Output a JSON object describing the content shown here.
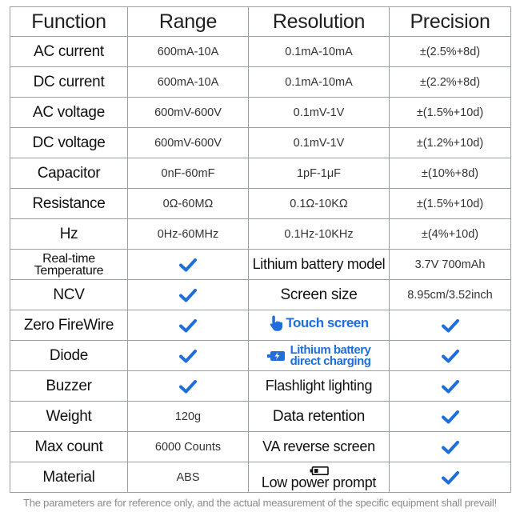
{
  "table": {
    "headers": [
      "Function",
      "Range",
      "Resolution",
      "Precision"
    ],
    "rows": [
      {
        "function": "AC current",
        "range": "600mA-10A",
        "resolution": "0.1mA-10mA",
        "precision": "±(2.5%+8d)"
      },
      {
        "function": "DC current",
        "range": "600mA-10A",
        "resolution": "0.1mA-10mA",
        "precision": "±(2.2%+8d)"
      },
      {
        "function": "AC voltage",
        "range": "600mV-600V",
        "resolution": "0.1mV-1V",
        "precision": "±(1.5%+10d)"
      },
      {
        "function": "DC voltage",
        "range": "600mV-600V",
        "resolution": "0.1mV-1V",
        "precision": "±(1.2%+10d)"
      },
      {
        "function": "Capacitor",
        "range": "0nF-60mF",
        "resolution": "1pF-1μF",
        "precision": "±(10%+8d)"
      },
      {
        "function": "Resistance",
        "range": "0Ω-60MΩ",
        "resolution": "0.1Ω-10KΩ",
        "precision": "±(1.5%+10d)"
      },
      {
        "function": "Hz",
        "range": "0Hz-60MHz",
        "resolution": "0.1Hz-10KHz",
        "precision": "±(4%+10d)"
      }
    ],
    "features": {
      "realtime_temperature_line1": "Real-time",
      "realtime_temperature_line2": "Temperature",
      "lithium_battery_model": "Lithium battery model",
      "lithium_battery_value": "3.7V 700mAh",
      "ncv": "NCV",
      "screen_size": "Screen size",
      "screen_size_value": "8.95cm/3.52inch",
      "zero_firewire": "Zero FireWire",
      "touch_screen": "Touch screen",
      "diode": "Diode",
      "direct_charging_line1": "Lithium battery",
      "direct_charging_line2": "direct charging",
      "buzzer": "Buzzer",
      "flashlight": "Flashlight lighting",
      "weight": "Weight",
      "weight_value": "120g",
      "data_retention": "Data retention",
      "max_count": "Max count",
      "max_count_value": "6000 Counts",
      "va_reverse": "VA reverse screen",
      "material": "Material",
      "material_value": "ABS",
      "low_power": "Low power prompt"
    }
  },
  "colors": {
    "check": "#1e6fd9",
    "grid": "#9aa0a6",
    "footer": "#8a8a8a"
  },
  "icons": {
    "check": "check-icon",
    "touch": "hand-pointer-icon",
    "charge": "battery-charging-icon",
    "battery": "battery-low-icon"
  },
  "footer": "The parameters are for reference only, and the actual measurement of the specific equipment shall prevail!"
}
